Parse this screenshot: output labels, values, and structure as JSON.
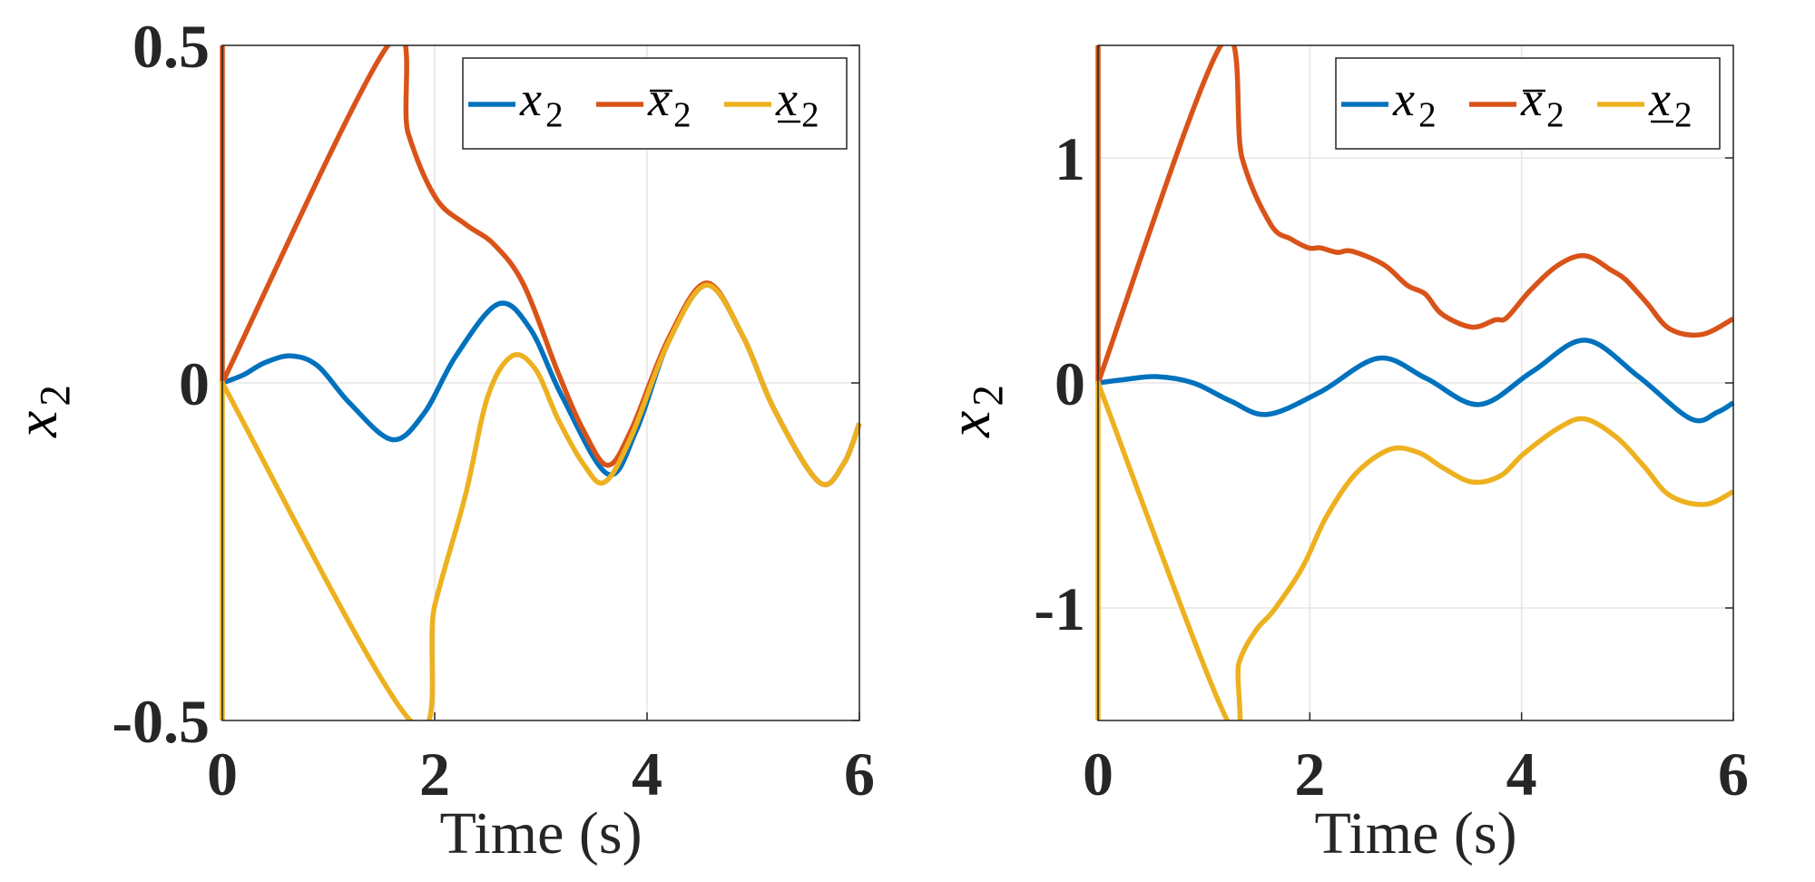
{
  "colors": {
    "x2": "#0072BD",
    "x2_upper": "#D95319",
    "x2_lower": "#EDB120"
  },
  "chart_data": [
    {
      "type": "line",
      "xlabel": "Time (s)",
      "ylabel": {
        "symbol": "x",
        "subscript": "2"
      },
      "xlim": [
        0,
        6
      ],
      "ylim": [
        -0.5,
        0.5
      ],
      "xticks": [
        "0",
        "2",
        "4",
        "6"
      ],
      "yticks": [
        "-0.5",
        "0",
        "0.5"
      ],
      "ytick_values": [
        -0.5,
        0,
        0.5
      ],
      "xtick_values": [
        0,
        2,
        4,
        6
      ],
      "grid": true,
      "legend_position": "top-right",
      "series": [
        {
          "name": "x_2",
          "legend": {
            "symbol": "x",
            "subscript": "2",
            "decoration": "none"
          },
          "color": "#0072BD",
          "x": [
            0,
            0.2,
            0.4,
            0.65,
            0.9,
            1.2,
            1.6,
            1.9,
            2.2,
            2.6,
            2.9,
            3.2,
            3.63,
            3.9,
            4.2,
            4.56,
            4.9,
            5.2,
            5.62,
            5.85,
            6
          ],
          "y": [
            0,
            0.012,
            0.03,
            0.04,
            0.025,
            -0.03,
            -0.084,
            -0.045,
            0.04,
            0.117,
            0.08,
            -0.02,
            -0.135,
            -0.07,
            0.06,
            0.145,
            0.07,
            -0.04,
            -0.147,
            -0.12,
            -0.06
          ]
        },
        {
          "name": "x̄_2",
          "legend": {
            "symbol": "x",
            "subscript": "2",
            "decoration": "overline"
          },
          "color": "#D95319",
          "x": [
            0,
            0,
            1.56,
            1.75,
            2.01,
            2.29,
            2.56,
            2.84,
            3.16,
            3.4,
            3.63,
            3.85,
            4.2,
            4.56,
            4.9,
            5.2,
            5.62,
            5.85,
            6
          ],
          "y": [
            0.5,
            0,
            0.5,
            0.37,
            0.274,
            0.235,
            0.205,
            0.145,
            0.016,
            -0.07,
            -0.122,
            -0.07,
            0.065,
            0.148,
            0.07,
            -0.04,
            -0.147,
            -0.12,
            -0.06
          ]
        },
        {
          "name": "x_2 (lower)",
          "legend": {
            "symbol": "x",
            "subscript": "2",
            "decoration": "underline"
          },
          "color": "#EDB120",
          "x": [
            0,
            0,
            1.77,
            2.0,
            2.29,
            2.5,
            2.73,
            2.95,
            3.16,
            3.4,
            3.6,
            3.85,
            4.2,
            4.56,
            4.9,
            5.2,
            5.62,
            5.85,
            6
          ],
          "y": [
            -0.5,
            0,
            -0.5,
            -0.33,
            -0.166,
            -0.02,
            0.04,
            0.02,
            -0.053,
            -0.12,
            -0.147,
            -0.08,
            0.06,
            0.145,
            0.07,
            -0.04,
            -0.147,
            -0.12,
            -0.06
          ]
        }
      ]
    },
    {
      "type": "line",
      "xlabel": "Time (s)",
      "ylabel": {
        "symbol": "x",
        "subscript": "2"
      },
      "xlim": [
        0,
        6
      ],
      "ylim": [
        -1.5,
        1.5
      ],
      "xticks": [
        "0",
        "2",
        "4",
        "6"
      ],
      "yticks": [
        "-1",
        "0",
        "1"
      ],
      "ytick_values": [
        -1,
        0,
        1
      ],
      "xtick_values": [
        0,
        2,
        4,
        6
      ],
      "grid": true,
      "legend_position": "top-right",
      "series": [
        {
          "name": "x_2",
          "legend": {
            "symbol": "x",
            "subscript": "2",
            "decoration": "none"
          },
          "color": "#0072BD",
          "x": [
            0,
            0.25,
            0.55,
            0.9,
            1.25,
            1.6,
            2.1,
            2.65,
            3.1,
            3.6,
            4.1,
            4.6,
            5.1,
            5.6,
            5.85,
            6
          ],
          "y": [
            0,
            0.015,
            0.028,
            0.0,
            -0.08,
            -0.14,
            -0.04,
            0.11,
            0.02,
            -0.096,
            0.05,
            0.19,
            0.03,
            -0.16,
            -0.13,
            -0.088
          ]
        },
        {
          "name": "x̄_2",
          "legend": {
            "symbol": "x",
            "subscript": "2",
            "decoration": "overline"
          },
          "color": "#D95319",
          "x": [
            0,
            0,
            1.16,
            1.36,
            1.63,
            1.82,
            1.99,
            2.1,
            2.26,
            2.4,
            2.7,
            2.92,
            3.09,
            3.25,
            3.53,
            3.75,
            3.86,
            4.08,
            4.35,
            4.6,
            4.85,
            4.98,
            5.18,
            5.4,
            5.7,
            6
          ],
          "y": [
            1.5,
            0,
            1.5,
            1.0,
            0.705,
            0.64,
            0.6,
            0.6,
            0.58,
            0.585,
            0.525,
            0.434,
            0.395,
            0.305,
            0.248,
            0.28,
            0.29,
            0.41,
            0.525,
            0.565,
            0.5,
            0.46,
            0.357,
            0.24,
            0.215,
            0.285
          ]
        },
        {
          "name": "x_2 (lower)",
          "legend": {
            "symbol": "x",
            "subscript": "2",
            "decoration": "underline"
          },
          "color": "#EDB120",
          "x": [
            0,
            0,
            1.22,
            1.33,
            1.49,
            1.66,
            1.93,
            2.15,
            2.43,
            2.76,
            3.03,
            3.25,
            3.53,
            3.8,
            4.02,
            4.35,
            4.6,
            4.9,
            5.15,
            5.4,
            5.73,
            6
          ],
          "y": [
            -1.5,
            0,
            -1.5,
            -1.245,
            -1.1,
            -1.01,
            -0.82,
            -0.6,
            -0.405,
            -0.295,
            -0.31,
            -0.375,
            -0.44,
            -0.413,
            -0.315,
            -0.2,
            -0.16,
            -0.243,
            -0.367,
            -0.5,
            -0.54,
            -0.483
          ]
        }
      ]
    }
  ]
}
